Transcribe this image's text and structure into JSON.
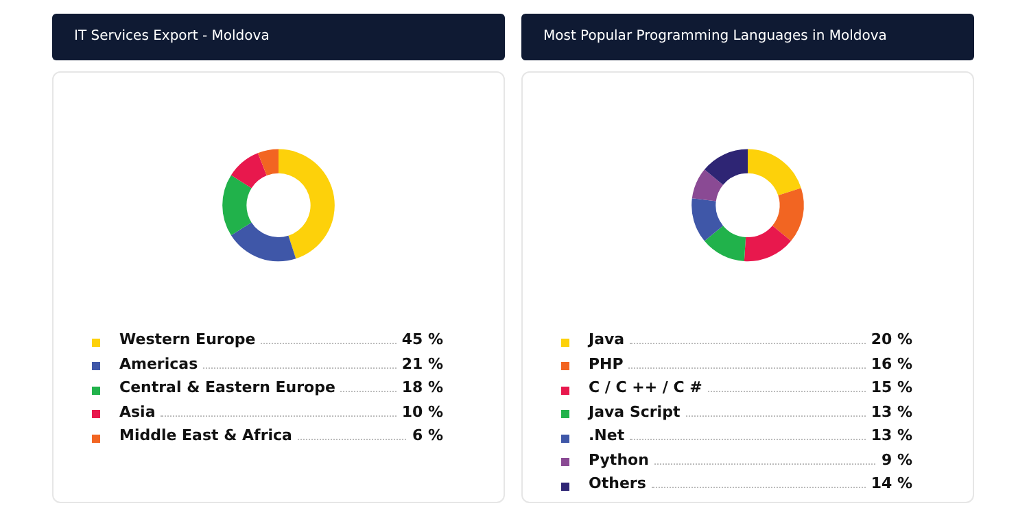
{
  "chart_data": [
    {
      "type": "donut",
      "title": "IT Services Export - Moldova",
      "categories": [
        "Western Europe",
        "Americas",
        "Central & Eastern Europe",
        "Asia",
        "Middle East & Africa"
      ],
      "values": [
        45,
        21,
        18,
        10,
        6
      ],
      "value_labels": [
        "45 %",
        "21 %",
        "18 %",
        "10 %",
        "6 %"
      ],
      "colors": [
        "#fdd10a",
        "#3f57a8",
        "#21b24b",
        "#e8184d",
        "#f26522"
      ],
      "legend": "bottom"
    },
    {
      "type": "donut",
      "title": "Most Popular Programming Languages in Moldova",
      "categories": [
        "Java",
        "PHP",
        "C / C ++ / C #",
        "Java Script",
        ".Net",
        "Python",
        "Others"
      ],
      "values": [
        20,
        16,
        15,
        13,
        13,
        9,
        14
      ],
      "value_labels": [
        "20 %",
        "16 %",
        "15 %",
        "13 %",
        "13 %",
        "9 %",
        "14 %"
      ],
      "colors": [
        "#fdd10a",
        "#f26522",
        "#e8184d",
        "#21b24b",
        "#3f57a8",
        "#8a4a94",
        "#2e2574"
      ],
      "legend": "bottom"
    }
  ]
}
